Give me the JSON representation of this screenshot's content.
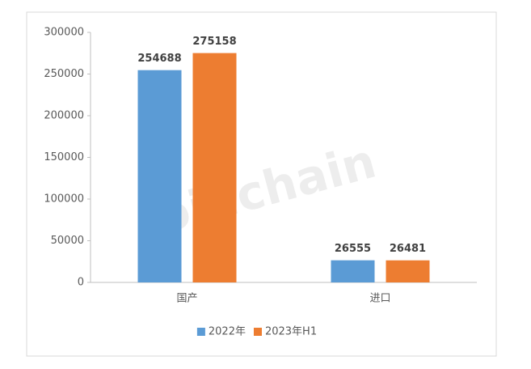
{
  "chart_data": {
    "type": "bar",
    "watermark": "Joinchain",
    "categories": [
      "国产",
      "进口"
    ],
    "series": [
      {
        "name": "2022年",
        "color": "#5b9bd5",
        "values": [
          254688,
          26555
        ]
      },
      {
        "name": "2023年H1",
        "color": "#ed7d31",
        "values": [
          275158,
          26481
        ]
      }
    ],
    "ylim": [
      0,
      300000
    ],
    "yticks": [
      0,
      50000,
      100000,
      150000,
      200000,
      250000,
      300000
    ],
    "legend": "bottom"
  }
}
